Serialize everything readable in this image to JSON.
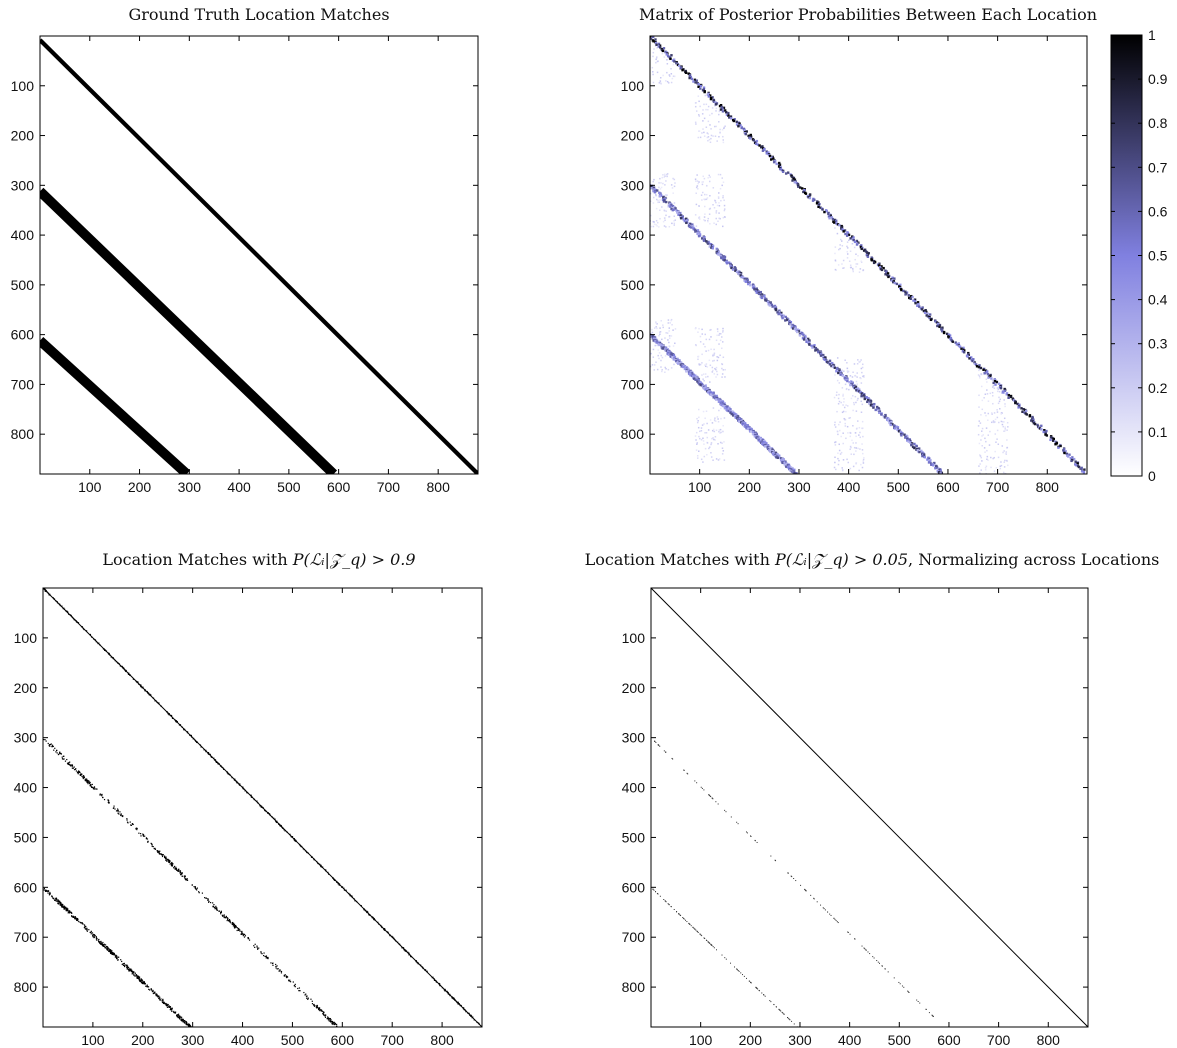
{
  "chart_data": [
    {
      "type": "heatmap",
      "id": "ground_truth",
      "title": "Ground Truth Location Matches",
      "xlim": [
        0,
        880
      ],
      "ylim": [
        0,
        880
      ],
      "y_reversed": true,
      "xticks": [
        "100",
        "200",
        "300",
        "400",
        "500",
        "600",
        "700",
        "800"
      ],
      "yticks": [
        "100",
        "200",
        "300",
        "400",
        "500",
        "600",
        "700",
        "800"
      ],
      "colormap": "binary",
      "bands": [
        {
          "x0": 0,
          "y0": 0,
          "x1": 880,
          "y1": 880,
          "thickness": 12
        },
        {
          "x0": 0,
          "y0": 300,
          "x1": 590,
          "y1": 880,
          "thickness": 28
        },
        {
          "x0": 0,
          "y0": 600,
          "x1": 295,
          "y1": 880,
          "thickness": 28
        }
      ]
    },
    {
      "type": "heatmap",
      "id": "posterior",
      "title": "Matrix of Posterior Probabilities Between Each Location",
      "xlim": [
        0,
        880
      ],
      "ylim": [
        0,
        880
      ],
      "y_reversed": true,
      "xticks": [
        "100",
        "200",
        "300",
        "400",
        "500",
        "600",
        "700",
        "800"
      ],
      "yticks": [
        "100",
        "200",
        "300",
        "400",
        "500",
        "600",
        "700",
        "800"
      ],
      "colormap": "white-blue-black",
      "colorbar": {
        "range": [
          0,
          1
        ],
        "ticks": [
          "0",
          "0.1",
          "0.2",
          "0.3",
          "0.4",
          "0.5",
          "0.6",
          "0.7",
          "0.8",
          "0.9",
          "1"
        ]
      },
      "bands": [
        {
          "x0": 0,
          "y0": 0,
          "x1": 880,
          "y1": 880,
          "prob": 0.9
        },
        {
          "x0": 0,
          "y0": 300,
          "x1": 590,
          "y1": 880,
          "prob": 0.7
        },
        {
          "x0": 0,
          "y0": 600,
          "x1": 295,
          "y1": 880,
          "prob": 0.6
        }
      ],
      "lower_triangle_only": true
    },
    {
      "type": "heatmap",
      "id": "threshold_09",
      "title_prefix": "Location Matches with ",
      "title_math": "P(ℒᵢ|𝒵_q) > 0.9",
      "xlim": [
        0,
        880
      ],
      "ylim": [
        0,
        880
      ],
      "y_reversed": true,
      "xticks": [
        "100",
        "200",
        "300",
        "400",
        "500",
        "600",
        "700",
        "800"
      ],
      "yticks": [
        "100",
        "200",
        "300",
        "400",
        "500",
        "600",
        "700",
        "800"
      ],
      "colormap": "binary",
      "threshold": 0.9
    },
    {
      "type": "heatmap",
      "id": "threshold_005",
      "title_prefix": "Location Matches with ",
      "title_math": "P(ℒᵢ|𝒵_q) > 0.05",
      "title_suffix": ", Normalizing across Locations",
      "xlim": [
        0,
        880
      ],
      "ylim": [
        0,
        880
      ],
      "y_reversed": true,
      "xticks": [
        "100",
        "200",
        "300",
        "400",
        "500",
        "600",
        "700",
        "800"
      ],
      "yticks": [
        "100",
        "200",
        "300",
        "400",
        "500",
        "600",
        "700",
        "800"
      ],
      "colormap": "binary",
      "threshold": 0.05,
      "normalized": true
    }
  ]
}
